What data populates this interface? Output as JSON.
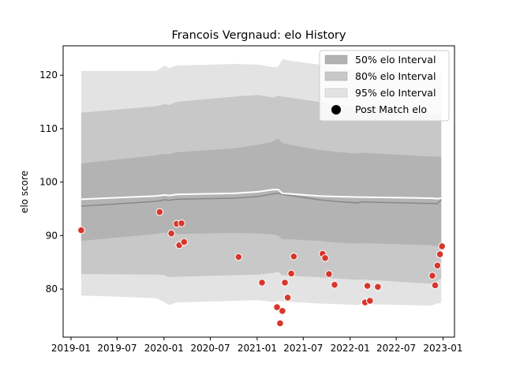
{
  "chart_data": {
    "type": "scatter",
    "title": "Francois Vergnaud: elo History",
    "xlabel": "",
    "ylabel": "elo score",
    "x_ticks": [
      "2019-01",
      "2019-07",
      "2020-01",
      "2020-07",
      "2021-01",
      "2021-07",
      "2022-01",
      "2022-07",
      "2023-01"
    ],
    "y_ticks": [
      80,
      90,
      100,
      110,
      120
    ],
    "xlim": [
      "2018-12-01",
      "2023-02-15"
    ],
    "ylim": [
      71,
      125.5
    ],
    "grid": false,
    "legend_position": "top-right",
    "legend": {
      "band50": "50% elo Interval",
      "band80": "80% elo Interval",
      "band95": "95% elo Interval",
      "points": "Post Match elo"
    },
    "colors": {
      "band50": "#b3b3b3",
      "band80": "#c8c8c8",
      "band95": "#e3e3e3",
      "mean_line": "#ffffff",
      "median_line": "#888888",
      "points": "#d7372b"
    },
    "band_x": [
      "2019-02-10",
      "2019-12-01",
      "2020-01-05",
      "2020-01-20",
      "2020-02-20",
      "2020-10-01",
      "2021-01-05",
      "2021-03-05",
      "2021-03-25",
      "2021-04-10",
      "2021-05-10",
      "2021-09-01",
      "2021-11-01",
      "2022-02-01",
      "2022-02-10",
      "2022-11-15",
      "2022-12-10",
      "2022-12-25"
    ],
    "band50_upper": [
      103.5,
      105.0,
      105.3,
      105.2,
      105.6,
      106.3,
      107.0,
      107.6,
      108.2,
      107.3,
      107.0,
      106.0,
      105.7,
      105.3,
      105.5,
      104.8,
      104.8,
      104.7
    ],
    "band50_lower": [
      89.0,
      90.3,
      90.6,
      90.2,
      90.3,
      90.5,
      90.4,
      90.2,
      90.0,
      89.3,
      89.3,
      89.0,
      88.7,
      88.5,
      88.6,
      88.2,
      88.0,
      88.6
    ],
    "band80_upper": [
      113.0,
      114.2,
      114.6,
      114.4,
      115.0,
      116.0,
      116.3,
      115.8,
      116.2,
      116.0,
      115.8,
      115.0,
      114.5,
      114.0,
      114.0,
      113.0,
      112.9,
      113.0
    ],
    "band80_lower": [
      82.8,
      82.7,
      82.6,
      82.2,
      82.3,
      82.6,
      82.7,
      83.0,
      83.2,
      82.6,
      82.5,
      82.2,
      82.0,
      81.7,
      81.8,
      81.0,
      81.5,
      82.0
    ],
    "band95_upper": [
      120.8,
      120.8,
      121.8,
      121.3,
      121.8,
      122.1,
      122.0,
      121.5,
      121.6,
      123.0,
      122.7,
      122.0,
      121.5,
      121.0,
      121.1,
      120.2,
      120.0,
      120.2
    ],
    "band95_lower": [
      78.8,
      78.3,
      77.5,
      77.0,
      77.5,
      77.8,
      77.9,
      77.6,
      77.8,
      77.7,
      77.6,
      77.3,
      77.2,
      77.0,
      77.2,
      76.9,
      77.3,
      77.4
    ],
    "mean_line": [
      96.8,
      97.4,
      97.6,
      97.5,
      97.7,
      97.9,
      98.2,
      98.6,
      98.6,
      97.9,
      97.8,
      97.4,
      97.3,
      97.2,
      97.2,
      97.0,
      96.9,
      97.0
    ],
    "median_line": [
      95.5,
      96.4,
      96.7,
      96.6,
      96.8,
      97.0,
      97.3,
      97.8,
      97.9,
      97.7,
      97.5,
      96.7,
      96.4,
      96.1,
      96.3,
      96.0,
      96.0,
      96.7
    ],
    "points": [
      {
        "date": "2019-02-10",
        "elo": 91.0
      },
      {
        "date": "2019-12-15",
        "elo": 94.4
      },
      {
        "date": "2020-01-30",
        "elo": 90.4
      },
      {
        "date": "2020-02-20",
        "elo": 92.2
      },
      {
        "date": "2020-03-01",
        "elo": 88.2
      },
      {
        "date": "2020-03-10",
        "elo": 92.3
      },
      {
        "date": "2020-03-20",
        "elo": 88.8
      },
      {
        "date": "2020-10-20",
        "elo": 86.0
      },
      {
        "date": "2021-01-20",
        "elo": 81.2
      },
      {
        "date": "2021-03-20",
        "elo": 76.6
      },
      {
        "date": "2021-04-01",
        "elo": 73.6
      },
      {
        "date": "2021-04-10",
        "elo": 75.9
      },
      {
        "date": "2021-04-20",
        "elo": 81.2
      },
      {
        "date": "2021-05-01",
        "elo": 78.4
      },
      {
        "date": "2021-05-15",
        "elo": 82.9
      },
      {
        "date": "2021-05-25",
        "elo": 86.1
      },
      {
        "date": "2021-09-15",
        "elo": 86.6
      },
      {
        "date": "2021-09-25",
        "elo": 85.8
      },
      {
        "date": "2021-10-10",
        "elo": 82.8
      },
      {
        "date": "2021-11-01",
        "elo": 80.8
      },
      {
        "date": "2022-03-01",
        "elo": 77.5
      },
      {
        "date": "2022-03-10",
        "elo": 80.6
      },
      {
        "date": "2022-03-20",
        "elo": 77.8
      },
      {
        "date": "2022-04-20",
        "elo": 80.4
      },
      {
        "date": "2022-11-20",
        "elo": 82.5
      },
      {
        "date": "2022-12-01",
        "elo": 80.7
      },
      {
        "date": "2022-12-10",
        "elo": 84.4
      },
      {
        "date": "2022-12-20",
        "elo": 86.5
      },
      {
        "date": "2022-12-28",
        "elo": 88.0
      }
    ]
  }
}
